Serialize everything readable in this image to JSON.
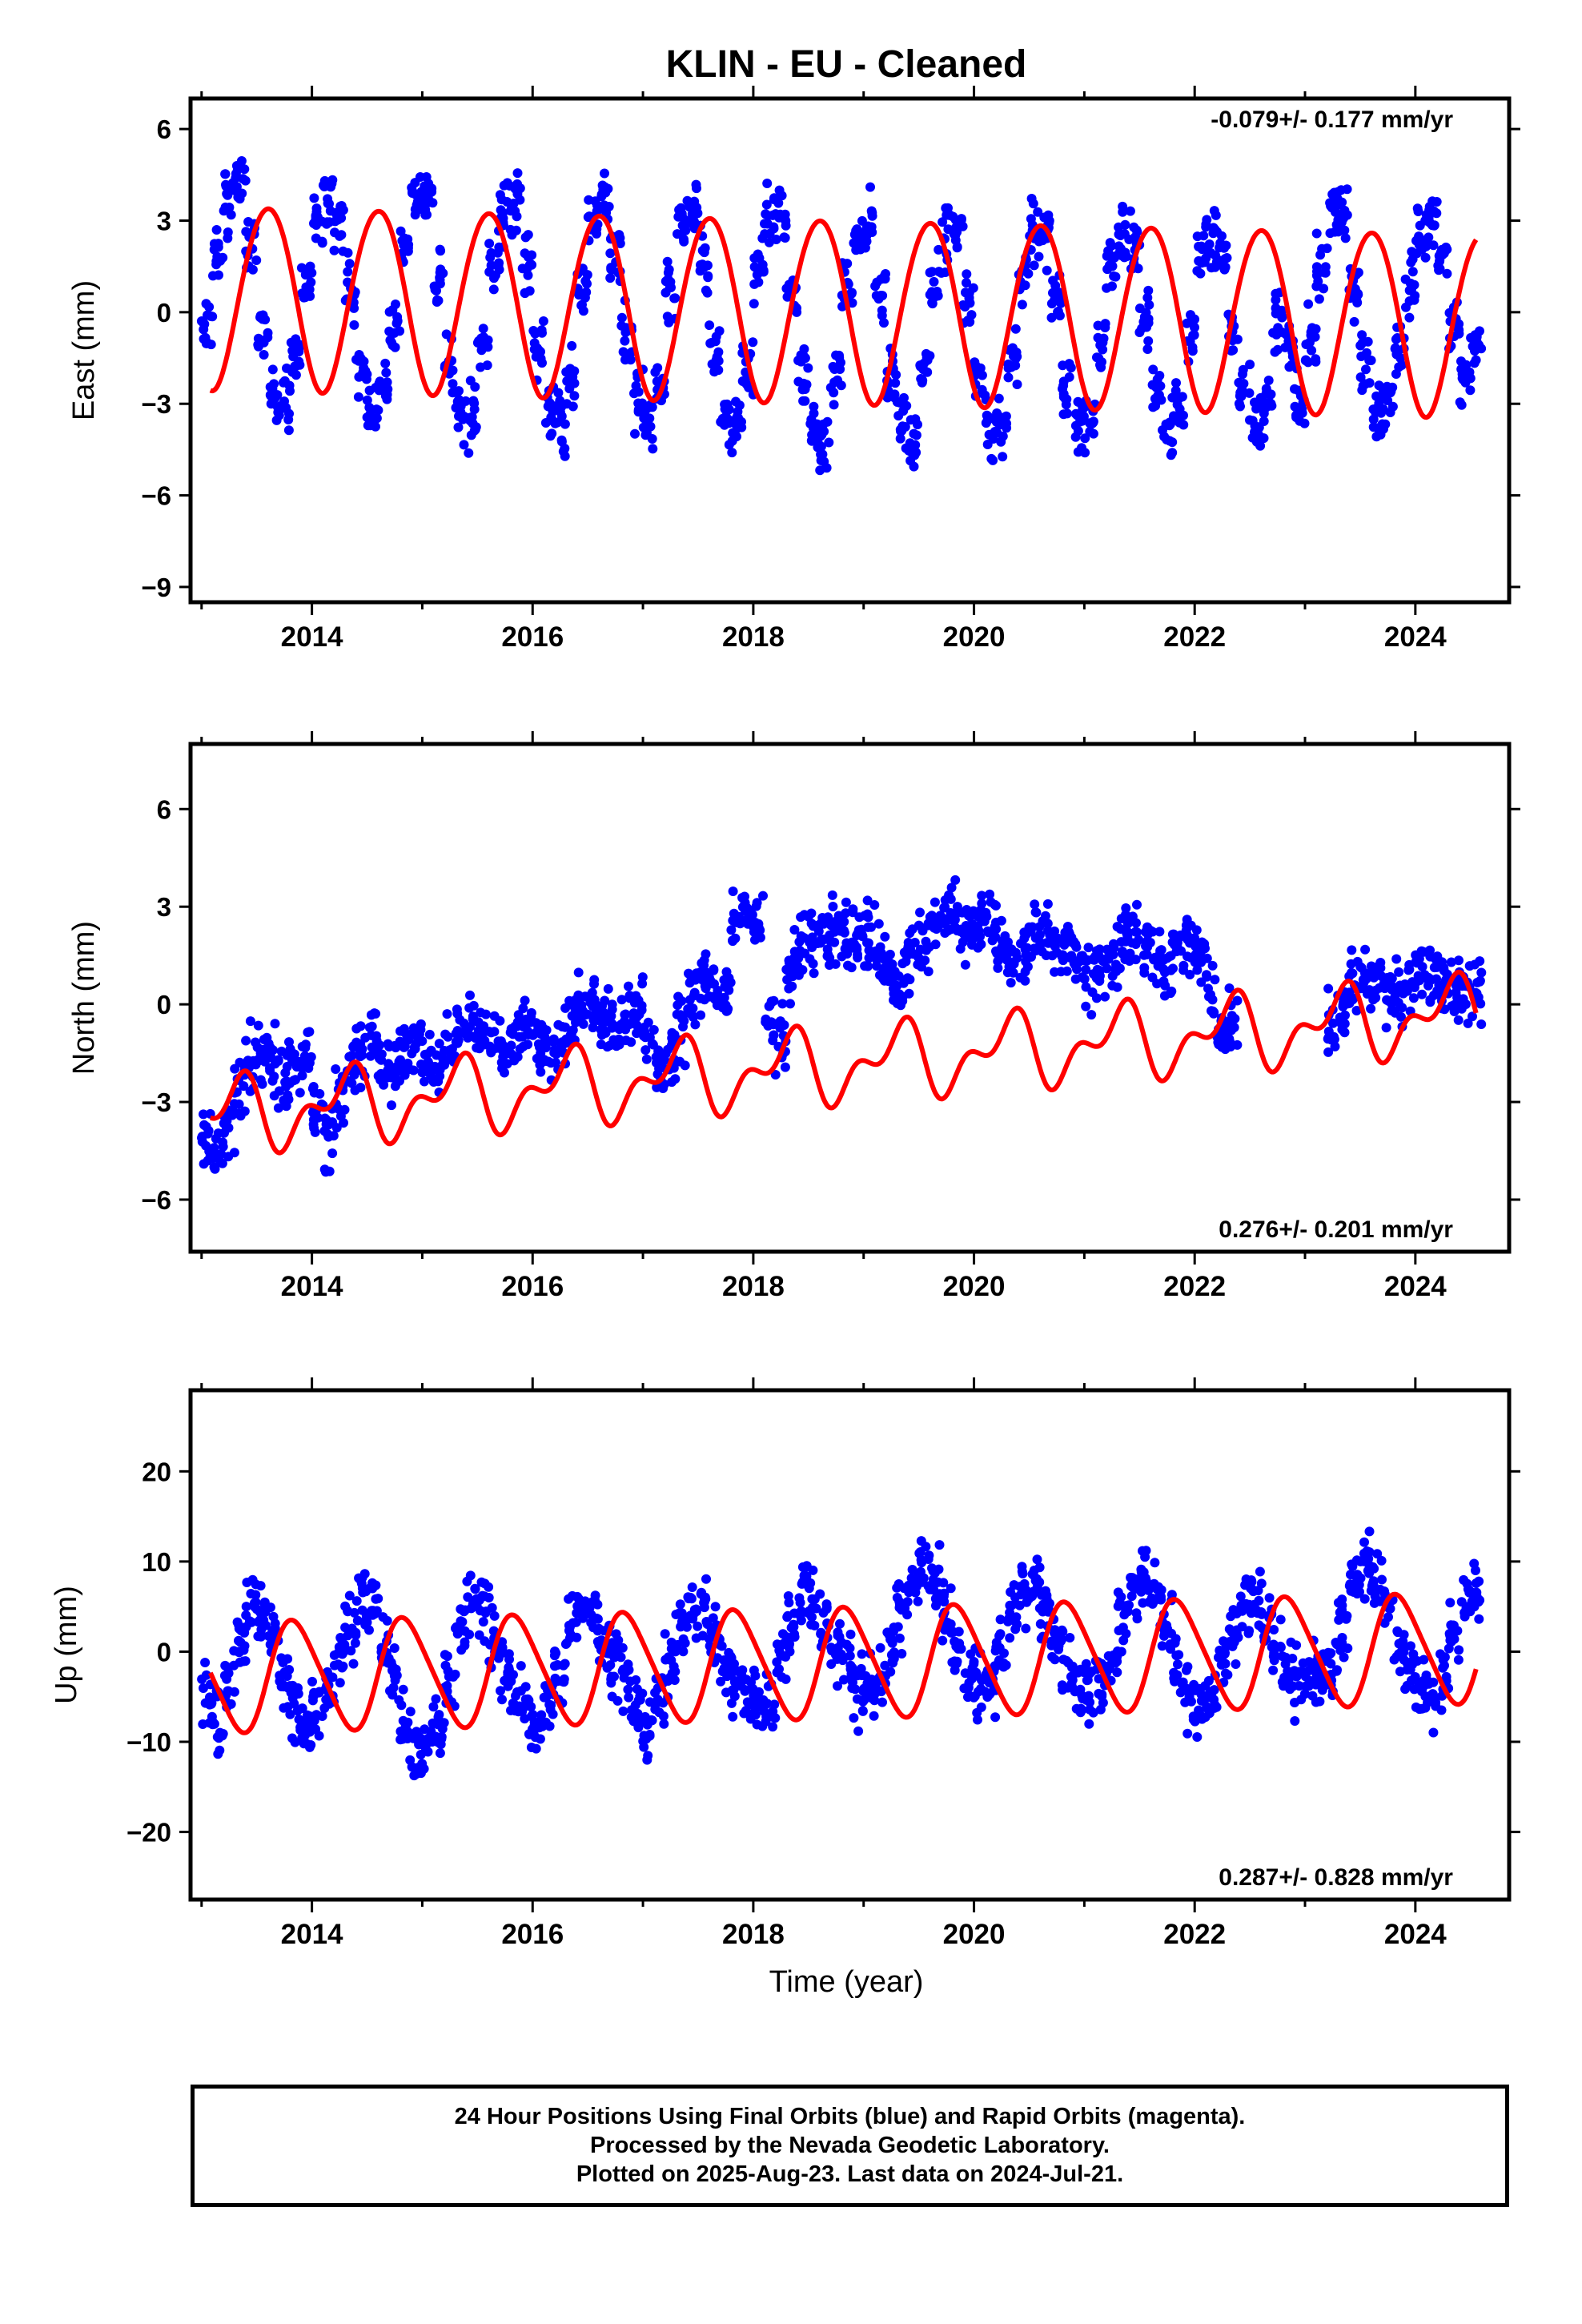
{
  "title": "KLIN  - EU - Cleaned",
  "xlabel": "Time (year)",
  "colors": {
    "points": "#0000ff",
    "fit": "#ff0000",
    "frame": "#000000"
  },
  "footer": {
    "line1": "24 Hour Positions Using Final Orbits (blue) and Rapid Orbits (magenta).",
    "line2": "Processed by the Nevada Geodetic Laboratory.",
    "line3": "Plotted on 2025-Aug-23. Last data on 2024-Jul-21."
  },
  "chart_data": [
    {
      "type": "scatter",
      "component": "east",
      "ylabel": "East (mm)",
      "rate_text": "-0.079+/- 0.177 mm/yr",
      "rate_position": "top-right",
      "xlim": [
        2012.9,
        2024.85
      ],
      "ylim": [
        -9.5,
        7
      ],
      "xticks": [
        2014,
        2016,
        2018,
        2020,
        2022,
        2024
      ],
      "yticks": [
        -9,
        -6,
        -3,
        0,
        3,
        6
      ],
      "grid": false,
      "series": [
        {
          "kind": "points",
          "x": [
            2013.05,
            2013.15,
            2013.25,
            2013.35,
            2013.45,
            2013.55,
            2013.65,
            2013.75,
            2013.85,
            2013.95,
            2014.05,
            2014.15,
            2014.25,
            2014.35,
            2014.45,
            2014.55,
            2014.65,
            2014.75,
            2014.85,
            2014.95,
            2015.05,
            2015.15,
            2015.25,
            2015.35,
            2015.45,
            2015.55,
            2015.65,
            2015.75,
            2015.85,
            2015.95,
            2016.05,
            2016.15,
            2016.25,
            2016.35,
            2016.45,
            2016.55,
            2016.65,
            2016.75,
            2016.85,
            2016.95,
            2017.05,
            2017.15,
            2017.25,
            2017.35,
            2017.45,
            2017.55,
            2017.65,
            2017.75,
            2017.85,
            2017.95,
            2018.05,
            2018.15,
            2018.25,
            2018.35,
            2018.45,
            2018.55,
            2018.65,
            2018.75,
            2018.85,
            2018.95,
            2019.05,
            2019.15,
            2019.25,
            2019.35,
            2019.45,
            2019.55,
            2019.65,
            2019.75,
            2019.85,
            2019.95,
            2020.05,
            2020.15,
            2020.25,
            2020.35,
            2020.45,
            2020.55,
            2020.65,
            2020.75,
            2020.85,
            2020.95,
            2021.05,
            2021.15,
            2021.25,
            2021.35,
            2021.45,
            2021.55,
            2021.65,
            2021.75,
            2021.85,
            2021.95,
            2022.05,
            2022.15,
            2022.25,
            2022.35,
            2022.45,
            2022.55,
            2022.65,
            2022.75,
            2022.85,
            2022.95,
            2023.05,
            2023.15,
            2023.25,
            2023.35,
            2023.45,
            2023.55,
            2023.65,
            2023.75,
            2023.85,
            2023.95,
            2024.05,
            2024.15,
            2024.25,
            2024.35,
            2024.45,
            2024.55
          ],
          "y": [
            -0.5,
            1.8,
            3.6,
            4.2,
            2.1,
            -0.6,
            -2.5,
            -3.0,
            -1.4,
            0.9,
            2.9,
            3.9,
            3.0,
            0.6,
            -2.0,
            -3.1,
            -2.4,
            -0.3,
            2.1,
            3.7,
            3.4,
            1.2,
            -1.6,
            -3.3,
            -3.5,
            -1.2,
            1.5,
            3.3,
            3.6,
            1.6,
            -1.2,
            -3.2,
            -3.8,
            -2.1,
            0.8,
            3.0,
            3.5,
            2.0,
            -0.8,
            -3.0,
            -3.6,
            -2.2,
            0.7,
            2.8,
            3.3,
            1.5,
            -1.4,
            -3.4,
            -3.8,
            -1.7,
            1.2,
            3.0,
            3.1,
            0.9,
            -2.0,
            -3.8,
            -4.4,
            -2.0,
            0.9,
            2.6,
            2.9,
            0.6,
            -2.2,
            -4.0,
            -4.2,
            -1.8,
            1.0,
            2.5,
            2.6,
            0.4,
            -2.2,
            -3.9,
            -3.8,
            -1.5,
            1.1,
            2.7,
            2.5,
            0.1,
            -2.4,
            -3.8,
            -3.6,
            -1.0,
            1.5,
            2.6,
            2.2,
            -0.2,
            -2.7,
            -3.7,
            -3.2,
            -0.6,
            1.6,
            2.5,
            1.9,
            -0.5,
            -2.8,
            -3.6,
            -2.9,
            -0.3,
            -1.2,
            -3.1,
            -1.0,
            1.4,
            3.6,
            3.2,
            0.9,
            -1.6,
            -3.3,
            -3.0,
            -1.2,
            0.9,
            2.5,
            3.0,
            2.0,
            -0.5,
            -2.2,
            -1.0
          ]
        },
        {
          "kind": "fit",
          "t0": 2013.08,
          "t1": 2024.55,
          "offset": 0.1,
          "trend": -0.079,
          "annual_amp": 3.0,
          "annual_phase": 0.35,
          "semi_amp": 0.15,
          "semi_phase": 0.2
        }
      ]
    },
    {
      "type": "scatter",
      "component": "north",
      "ylabel": "North (mm)",
      "rate_text": "0.276+/- 0.201 mm/yr",
      "rate_position": "bottom-right",
      "xlim": [
        2012.9,
        2024.85
      ],
      "ylim": [
        -7.6,
        8
      ],
      "xticks": [
        2014,
        2016,
        2018,
        2020,
        2022,
        2024
      ],
      "yticks": [
        -6,
        -3,
        0,
        3,
        6
      ],
      "grid": false,
      "series": [
        {
          "kind": "points",
          "x": [
            2013.05,
            2013.15,
            2013.25,
            2013.35,
            2013.45,
            2013.55,
            2013.65,
            2013.75,
            2013.85,
            2013.95,
            2014.05,
            2014.15,
            2014.25,
            2014.35,
            2014.45,
            2014.55,
            2014.65,
            2014.75,
            2014.85,
            2014.95,
            2015.05,
            2015.15,
            2015.25,
            2015.35,
            2015.45,
            2015.55,
            2015.65,
            2015.75,
            2015.85,
            2015.95,
            2016.05,
            2016.15,
            2016.25,
            2016.35,
            2016.45,
            2016.55,
            2016.65,
            2016.75,
            2016.85,
            2016.95,
            2017.05,
            2017.15,
            2017.25,
            2017.35,
            2017.45,
            2017.55,
            2017.65,
            2017.75,
            2017.85,
            2017.95,
            2018.05,
            2018.15,
            2018.25,
            2018.35,
            2018.45,
            2018.55,
            2018.65,
            2018.75,
            2018.85,
            2018.95,
            2019.05,
            2019.15,
            2019.25,
            2019.35,
            2019.45,
            2019.55,
            2019.65,
            2019.75,
            2019.85,
            2019.95,
            2020.05,
            2020.15,
            2020.25,
            2020.35,
            2020.45,
            2020.55,
            2020.65,
            2020.75,
            2020.85,
            2020.95,
            2021.05,
            2021.15,
            2021.25,
            2021.35,
            2021.45,
            2021.55,
            2021.65,
            2021.75,
            2021.85,
            2021.95,
            2022.05,
            2022.15,
            2022.25,
            2022.35,
            2023.25,
            2023.35,
            2023.45,
            2023.55,
            2023.65,
            2023.75,
            2023.85,
            2023.95,
            2024.05,
            2024.15,
            2024.25,
            2024.35,
            2024.45,
            2024.55
          ],
          "y": [
            -4.0,
            -4.6,
            -3.5,
            -2.6,
            -1.8,
            -1.6,
            -1.9,
            -2.3,
            -2.0,
            -1.6,
            -3.5,
            -4.1,
            -3.0,
            -2.0,
            -1.4,
            -1.2,
            -1.7,
            -1.9,
            -1.4,
            -1.1,
            -1.8,
            -2.0,
            -1.4,
            -0.9,
            -0.7,
            -0.8,
            -1.3,
            -1.4,
            -0.9,
            -0.5,
            -1.0,
            -1.5,
            -1.1,
            -0.4,
            -0.1,
            0.0,
            -0.5,
            -0.8,
            -0.4,
            0.1,
            -1.0,
            -2.0,
            -1.6,
            -0.9,
            0.2,
            0.6,
            0.3,
            0.5,
            2.6,
            2.9,
            2.4,
            -0.5,
            -1.2,
            1.1,
            1.8,
            2.0,
            2.1,
            2.3,
            2.0,
            2.2,
            2.1,
            1.6,
            1.0,
            0.8,
            1.5,
            2.0,
            2.4,
            2.8,
            2.5,
            2.2,
            2.4,
            2.3,
            1.8,
            1.3,
            1.6,
            2.0,
            2.1,
            1.8,
            1.6,
            1.4,
            1.0,
            0.9,
            1.5,
            1.9,
            2.1,
            2.0,
            1.5,
            1.2,
            1.5,
            1.8,
            1.4,
            0.3,
            -0.8,
            -0.4,
            -0.6,
            -0.1,
            0.6,
            0.9,
            0.7,
            0.3,
            0.2,
            0.8,
            1.2,
            0.9,
            0.6,
            0.5,
            0.4,
            0.3
          ],
          "highlight_offsets": [
            0,
            0.7,
            -0.6,
            1.3,
            -1.2
          ]
        },
        {
          "kind": "fit",
          "t0": 2013.08,
          "t1": 2024.55,
          "offset": -1.8,
          "trend": 0.276,
          "annual_amp": 0.9,
          "annual_phase": 0.05,
          "semi_amp": 0.6,
          "semi_phase": 0.3
        }
      ]
    },
    {
      "type": "scatter",
      "component": "up",
      "ylabel": "Up (mm)",
      "rate_text": "0.287+/- 0.828 mm/yr",
      "rate_position": "bottom-right",
      "xlim": [
        2012.9,
        2024.85
      ],
      "ylim": [
        -27.5,
        29
      ],
      "xticks": [
        2014,
        2016,
        2018,
        2020,
        2022,
        2024
      ],
      "yticks": [
        -20,
        -10,
        0,
        10,
        20
      ],
      "grid": false,
      "series": [
        {
          "kind": "points",
          "x": [
            2013.05,
            2013.15,
            2013.25,
            2013.35,
            2013.45,
            2013.55,
            2013.65,
            2013.75,
            2013.85,
            2013.95,
            2014.05,
            2014.15,
            2014.25,
            2014.35,
            2014.45,
            2014.55,
            2014.65,
            2014.75,
            2014.85,
            2014.95,
            2015.05,
            2015.15,
            2015.25,
            2015.35,
            2015.45,
            2015.55,
            2015.65,
            2015.75,
            2015.85,
            2015.95,
            2016.05,
            2016.15,
            2016.25,
            2016.35,
            2016.45,
            2016.55,
            2016.65,
            2016.75,
            2016.85,
            2016.95,
            2017.05,
            2017.15,
            2017.25,
            2017.35,
            2017.45,
            2017.55,
            2017.65,
            2017.75,
            2017.85,
            2017.95,
            2018.05,
            2018.15,
            2018.25,
            2018.35,
            2018.45,
            2018.55,
            2018.65,
            2018.75,
            2018.85,
            2018.95,
            2019.05,
            2019.15,
            2019.25,
            2019.35,
            2019.45,
            2019.55,
            2019.65,
            2019.75,
            2019.85,
            2019.95,
            2020.05,
            2020.15,
            2020.25,
            2020.35,
            2020.45,
            2020.55,
            2020.65,
            2020.75,
            2020.85,
            2020.95,
            2021.05,
            2021.15,
            2021.25,
            2021.35,
            2021.45,
            2021.55,
            2021.65,
            2021.75,
            2021.85,
            2021.95,
            2022.05,
            2022.15,
            2022.25,
            2022.35,
            2022.45,
            2022.55,
            2022.65,
            2022.75,
            2022.85,
            2022.95,
            2023.05,
            2023.15,
            2023.25,
            2023.35,
            2023.45,
            2023.55,
            2023.65,
            2023.75,
            2023.85,
            2023.95,
            2024.05,
            2024.15,
            2024.25,
            2024.35,
            2024.45,
            2024.55
          ],
          "y": [
            -5.0,
            -8.0,
            -4.0,
            1.0,
            5.0,
            4.0,
            1.0,
            -3.0,
            -6.0,
            -8.0,
            -7.0,
            -5.0,
            -1.0,
            3.0,
            6.0,
            5.0,
            1.0,
            -3.0,
            -8.0,
            -11.0,
            -10.0,
            -8.0,
            -3.0,
            2.0,
            6.0,
            5.0,
            2.0,
            -2.0,
            -5.0,
            -7.0,
            -8.0,
            -6.0,
            -2.0,
            3.0,
            5.0,
            4.0,
            1.0,
            -2.0,
            -4.0,
            -6.0,
            -8.0,
            -6.0,
            -2.0,
            2.0,
            5.0,
            5.0,
            2.0,
            -1.0,
            -3.0,
            -5.0,
            -6.0,
            -5.0,
            -1.0,
            3.0,
            6.0,
            6.0,
            3.0,
            0.0,
            -2.0,
            -4.0,
            -4.0,
            -3.0,
            0.0,
            4.0,
            8.0,
            10.0,
            8.0,
            4.0,
            0.0,
            -3.0,
            -4.0,
            -3.0,
            0.0,
            4.0,
            7.0,
            7.0,
            4.0,
            1.0,
            -2.0,
            -4.0,
            -5.0,
            -4.0,
            -1.0,
            3.0,
            7.0,
            8.0,
            6.0,
            2.0,
            -2.0,
            -5.0,
            -6.0,
            -5.0,
            -2.0,
            2.0,
            5.0,
            6.0,
            4.0,
            0.0,
            -2.0,
            -3.0,
            -3.0,
            -4.0,
            -2.0,
            3.0,
            8.0,
            10.0,
            8.0,
            5.0,
            1.0,
            -2.0,
            -4.0,
            -5.0,
            -3.0,
            2.0,
            6.0,
            7.0
          ]
        },
        {
          "kind": "fit",
          "t0": 2013.08,
          "t1": 2024.55,
          "offset": -1.2,
          "trend": 0.287,
          "annual_amp": 6.0,
          "annual_phase": 0.6,
          "semi_amp": 0.8,
          "semi_phase": 0.1
        }
      ]
    }
  ]
}
